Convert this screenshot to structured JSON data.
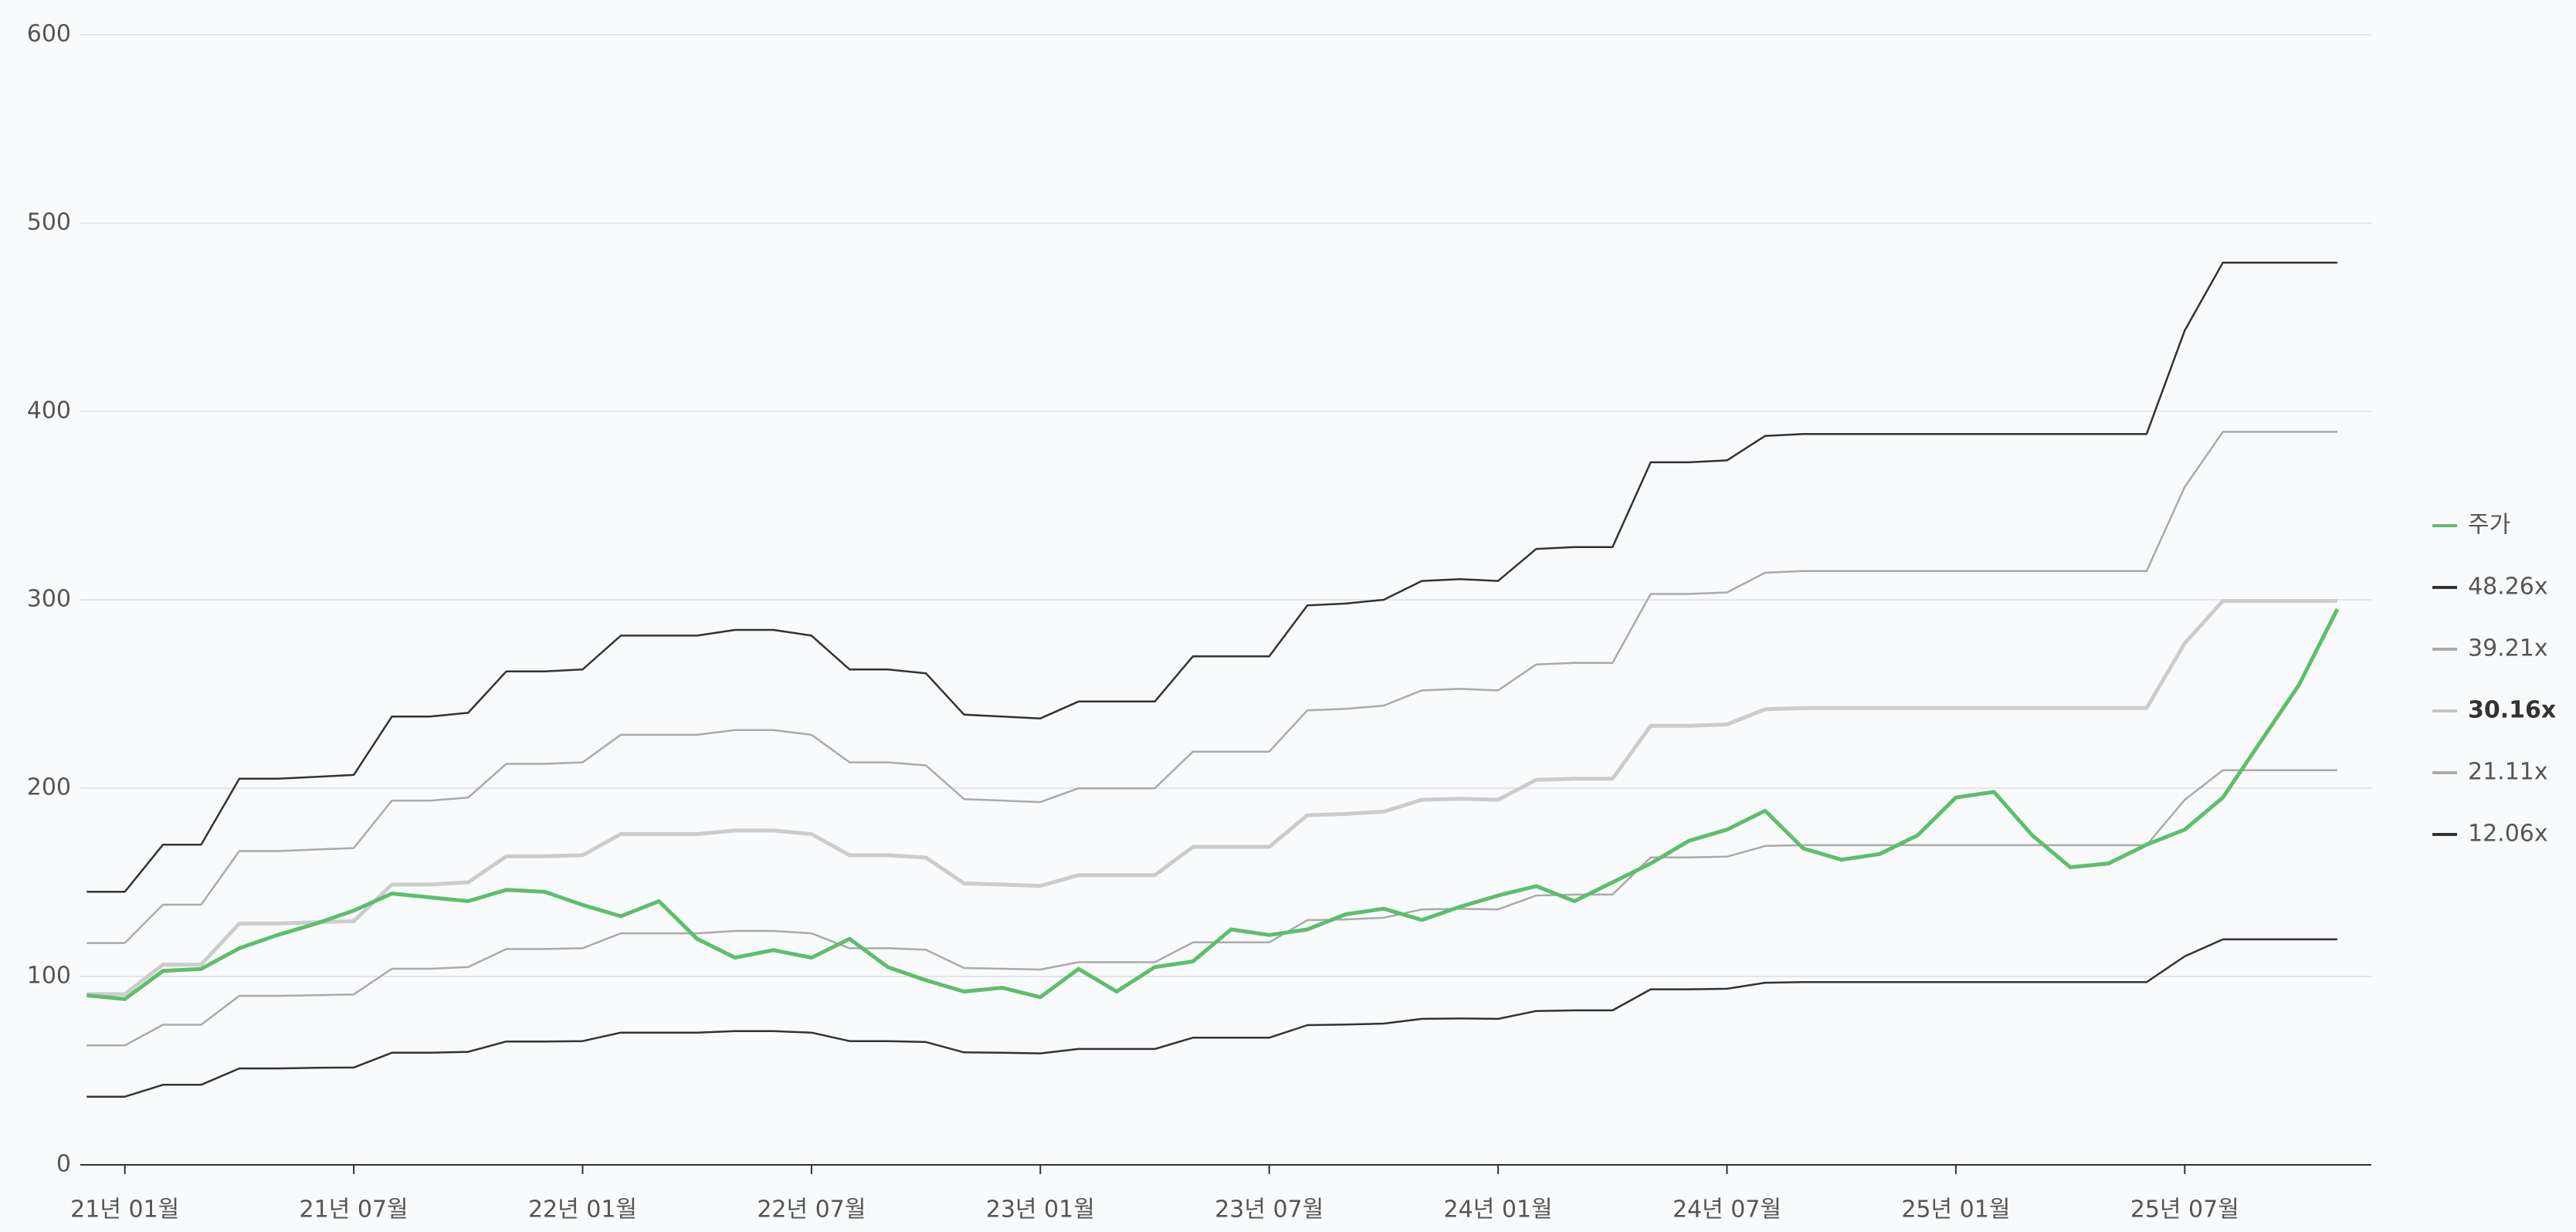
{
  "chart_data": {
    "type": "line",
    "x": [
      "20년 12월",
      "21년 01월",
      "21년 02월",
      "21년 03월",
      "21년 04월",
      "21년 05월",
      "21년 06월",
      "21년 07월",
      "21년 08월",
      "21년 09월",
      "21년 10월",
      "21년 11월",
      "21년 12월",
      "22년 01월",
      "22년 02월",
      "22년 03월",
      "22년 04월",
      "22년 05월",
      "22년 06월",
      "22년 07월",
      "22년 08월",
      "22년 09월",
      "22년 10월",
      "22년 11월",
      "22년 12월",
      "23년 01월",
      "23년 02월",
      "23년 03월",
      "23년 04월",
      "23년 05월",
      "23년 06월",
      "23년 07월",
      "23년 08월",
      "23년 09월",
      "23년 10월",
      "23년 11월",
      "23년 12월",
      "24년 01월",
      "24년 02월",
      "24년 03월",
      "24년 04월",
      "24년 05월",
      "24년 06월",
      "24년 07월",
      "24년 08월",
      "24년 09월",
      "24년 10월",
      "24년 11월",
      "24년 12월",
      "25년 01월",
      "25년 02월",
      "25년 03월",
      "25년 04월",
      "25년 05월",
      "25년 06월",
      "25년 07월",
      "25년 08월",
      "25년 09월",
      "25년 10월",
      "25년 11월"
    ],
    "xticks": [
      "21년 01월",
      "21년 07월",
      "22년 01월",
      "22년 07월",
      "23년 01월",
      "23년 07월",
      "24년 01월",
      "24년 07월",
      "25년 01월",
      "25년 07월"
    ],
    "ylim": [
      0,
      600
    ],
    "yticks": [
      0,
      100,
      200,
      300,
      400,
      500,
      600
    ],
    "grid": true,
    "legend": "right",
    "series": [
      {
        "name": "주가",
        "color": "#5cbf6a",
        "values": [
          90,
          88,
          103,
          104,
          115,
          122,
          128,
          135,
          144,
          142,
          140,
          146,
          145,
          138,
          132,
          140,
          120,
          110,
          114,
          110,
          120,
          105,
          98,
          92,
          94,
          89,
          104,
          92,
          105,
          108,
          125,
          122,
          125,
          133,
          136,
          130,
          137,
          143,
          148,
          140,
          150,
          160,
          172,
          178,
          188,
          168,
          162,
          165,
          175,
          195,
          198,
          175,
          158,
          160,
          170,
          178,
          195,
          225,
          255,
          295
        ]
      },
      {
        "name": "48.26x",
        "color": "#333333",
        "values": [
          145,
          145,
          170,
          170,
          205,
          205,
          206,
          207,
          238,
          238,
          240,
          262,
          262,
          263,
          281,
          281,
          281,
          284,
          284,
          281,
          263,
          263,
          261,
          239,
          238,
          237,
          246,
          246,
          246,
          270,
          270,
          270,
          297,
          298,
          300,
          310,
          311,
          310,
          327,
          328,
          328,
          373,
          373,
          374,
          387,
          388,
          388,
          388,
          388,
          388,
          388,
          388,
          388,
          388,
          388,
          443,
          479,
          479,
          479,
          479
        ]
      },
      {
        "name": "39.21x",
        "color": "#aaaaaa",
        "values": [
          117.8,
          117.8,
          138.1,
          138.1,
          166.6,
          166.6,
          167.4,
          168.2,
          193.4,
          193.4,
          195,
          212.9,
          212.9,
          213.7,
          228.3,
          228.3,
          228.3,
          230.8,
          230.8,
          228.3,
          213.7,
          213.7,
          212.1,
          194.2,
          193.4,
          192.6,
          199.9,
          199.9,
          199.9,
          219.4,
          219.4,
          219.4,
          241.3,
          242.1,
          243.8,
          251.9,
          252.7,
          251.9,
          265.7,
          266.5,
          266.5,
          303.1,
          303.1,
          303.9,
          314.4,
          315.3,
          315.3,
          315.3,
          315.3,
          315.3,
          315.3,
          315.3,
          315.3,
          315.3,
          315.3,
          359.9,
          389.2,
          389.2,
          389.2,
          389.2
        ]
      },
      {
        "name": "30.16x",
        "color": "#cccccc",
        "bold": true,
        "values": [
          90.6,
          90.6,
          106.3,
          106.3,
          128.1,
          128.1,
          128.8,
          129.4,
          148.8,
          148.8,
          150,
          163.8,
          163.8,
          164.4,
          175.6,
          175.6,
          175.6,
          177.5,
          177.5,
          175.6,
          164.4,
          164.4,
          163.1,
          149.4,
          148.8,
          148.1,
          153.8,
          153.8,
          153.8,
          168.8,
          168.8,
          168.8,
          185.6,
          186.3,
          187.5,
          193.8,
          194.4,
          193.8,
          204.4,
          205,
          205,
          233.1,
          233.1,
          233.8,
          241.9,
          242.5,
          242.5,
          242.5,
          242.5,
          242.5,
          242.5,
          242.5,
          242.5,
          242.5,
          242.5,
          276.9,
          299.4,
          299.4,
          299.4,
          299.4
        ]
      },
      {
        "name": "21.11x",
        "color": "#aaaaaa",
        "values": [
          63.4,
          63.4,
          74.4,
          74.4,
          89.7,
          89.7,
          90.1,
          90.5,
          104.1,
          104.1,
          105,
          114.6,
          114.6,
          115,
          122.9,
          122.9,
          122.9,
          124.2,
          124.2,
          122.9,
          115,
          115,
          114.2,
          104.5,
          104.1,
          103.7,
          107.6,
          107.6,
          107.6,
          118.1,
          118.1,
          118.1,
          129.9,
          130.3,
          131.2,
          135.6,
          136,
          135.6,
          143,
          143.5,
          143.5,
          163.2,
          163.2,
          163.6,
          169.3,
          169.7,
          169.7,
          169.7,
          169.7,
          169.7,
          169.7,
          169.7,
          169.7,
          169.7,
          169.7,
          193.8,
          209.5,
          209.5,
          209.5,
          209.5
        ]
      },
      {
        "name": "12.06x",
        "color": "#333333",
        "values": [
          36.2,
          36.2,
          42.5,
          42.5,
          51.2,
          51.2,
          51.5,
          51.7,
          59.5,
          59.5,
          60,
          65.5,
          65.5,
          65.7,
          70.2,
          70.2,
          70.2,
          71,
          71,
          70.2,
          65.7,
          65.7,
          65.2,
          59.7,
          59.5,
          59.2,
          61.5,
          61.5,
          61.5,
          67.5,
          67.5,
          67.5,
          74.2,
          74.5,
          75,
          77.5,
          77.7,
          77.5,
          81.7,
          82,
          82,
          93.2,
          93.2,
          93.5,
          96.7,
          97,
          97,
          97,
          97,
          97,
          97,
          97,
          97,
          97,
          97,
          110.7,
          119.7,
          119.7,
          119.7,
          119.7
        ]
      }
    ]
  }
}
